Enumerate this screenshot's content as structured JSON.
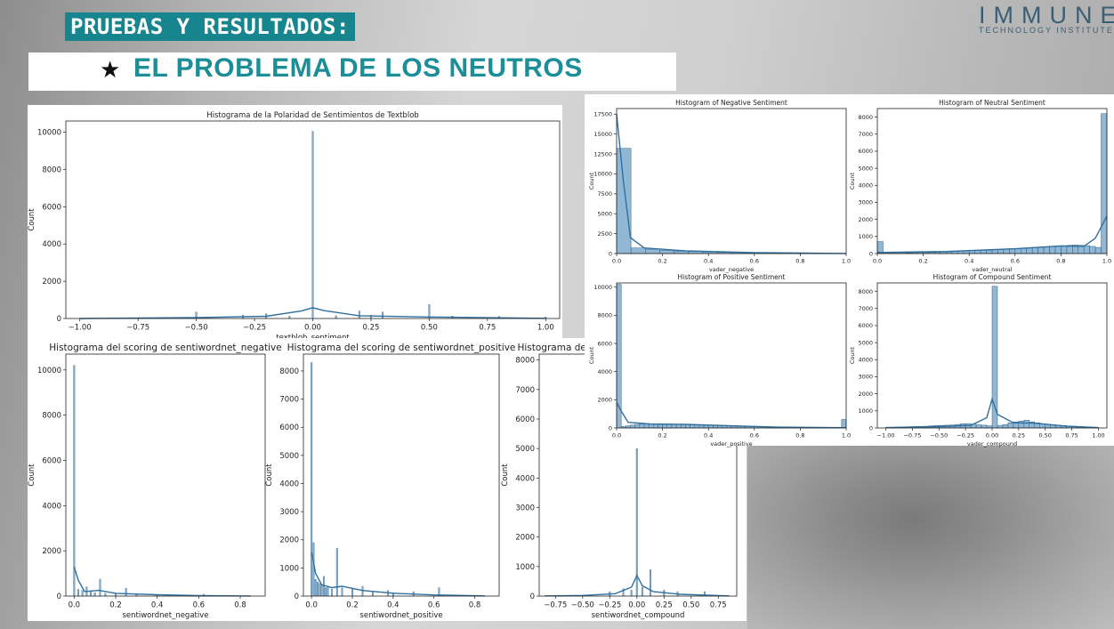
{
  "header": {
    "tag": "PRUEBAS Y RESULTADOS:",
    "star": "★",
    "subtitle": "EL PROBLEMA DE LOS NEUTROS"
  },
  "logo": {
    "name": "IMMUNE",
    "tagline": "TECHNOLOGY INSTITUTE"
  },
  "colors": {
    "accent": "#17858e",
    "bar": "#6c9fc7",
    "line": "#2f6f9f"
  },
  "chart_data": [
    {
      "id": "tb",
      "type": "bar",
      "title": "Histograma de la Polaridad de Sentimientos de Textblob",
      "xlabel": "textblob_sentiment",
      "ylabel": "Count",
      "xlim": [
        -1.06,
        1.06
      ],
      "ylim": [
        0,
        10600
      ],
      "xticks": [
        -1.0,
        -0.75,
        -0.5,
        -0.25,
        0.0,
        0.25,
        0.5,
        0.75,
        1.0
      ],
      "xticklabels": [
        "−1.00",
        "−0.75",
        "−0.50",
        "−0.25",
        "0.00",
        "0.25",
        "0.50",
        "0.75",
        "1.00"
      ],
      "yticks": [
        0,
        2000,
        4000,
        6000,
        8000,
        10000
      ],
      "yticklabels": [
        "0",
        "2000",
        "4000",
        "6000",
        "8000",
        "10000"
      ],
      "bars": [
        [
          -0.5,
          350
        ],
        [
          -0.3,
          180
        ],
        [
          -0.2,
          260
        ],
        [
          -0.1,
          120
        ],
        [
          0.0,
          10050
        ],
        [
          0.1,
          150
        ],
        [
          0.2,
          400
        ],
        [
          0.25,
          180
        ],
        [
          0.3,
          350
        ],
        [
          0.5,
          750
        ],
        [
          0.6,
          130
        ],
        [
          0.8,
          120
        ],
        [
          1.0,
          80
        ]
      ],
      "kde": [
        [
          -1.0,
          0
        ],
        [
          -0.5,
          50
        ],
        [
          -0.2,
          120
        ],
        [
          -0.05,
          400
        ],
        [
          0.0,
          580
        ],
        [
          0.05,
          420
        ],
        [
          0.2,
          150
        ],
        [
          0.5,
          80
        ],
        [
          1.0,
          10
        ]
      ]
    },
    {
      "id": "neg",
      "type": "bar",
      "title": "Histogram of Negative Sentiment",
      "xlabel": "vader_negative",
      "ylabel": "Count",
      "xlim": [
        0,
        1
      ],
      "ylim": [
        0,
        18200
      ],
      "xticks": [
        0,
        0.2,
        0.4,
        0.6,
        0.8,
        1.0
      ],
      "xticklabels": [
        "0.0",
        "0.2",
        "0.4",
        "0.6",
        "0.8",
        "1.0"
      ],
      "yticks": [
        0,
        2500,
        5000,
        7500,
        10000,
        12500,
        15000,
        17500
      ],
      "yticklabels": [
        "0",
        "2500",
        "5000",
        "7500",
        "10000",
        "12500",
        "15000",
        "17500"
      ],
      "bins": {
        "start": 0,
        "width": 0.0625,
        "values": [
          13200,
          700,
          550,
          400,
          300,
          250,
          200,
          150,
          120,
          100,
          80,
          60,
          50,
          40,
          30,
          20
        ]
      },
      "kde": [
        [
          0,
          17500
        ],
        [
          0.03,
          9000
        ],
        [
          0.06,
          2000
        ],
        [
          0.12,
          700
        ],
        [
          0.3,
          350
        ],
        [
          0.6,
          120
        ],
        [
          1.0,
          10
        ]
      ]
    },
    {
      "id": "neu",
      "type": "bar",
      "title": "Histogram of Neutral Sentiment",
      "xlabel": "vader_neutral",
      "ylabel": "Count",
      "xlim": [
        0,
        1
      ],
      "ylim": [
        0,
        8500
      ],
      "xticks": [
        0,
        0.2,
        0.4,
        0.6,
        0.8,
        1.0
      ],
      "xticklabels": [
        "0.0",
        "0.2",
        "0.4",
        "0.6",
        "0.8",
        "1.0"
      ],
      "yticks": [
        0,
        1000,
        2000,
        3000,
        4000,
        5000,
        6000,
        7000,
        8000
      ],
      "yticklabels": [
        "0",
        "1000",
        "2000",
        "3000",
        "4000",
        "5000",
        "6000",
        "7000",
        "8000"
      ],
      "bins": {
        "start": 0,
        "width": 0.025,
        "values": [
          700,
          60,
          30,
          30,
          30,
          40,
          50,
          60,
          60,
          70,
          80,
          90,
          100,
          120,
          140,
          160,
          170,
          180,
          200,
          210,
          220,
          240,
          260,
          280,
          300,
          320,
          340,
          360,
          380,
          400,
          420,
          440,
          460,
          480,
          500,
          480,
          460,
          420,
          360,
          8200
        ]
      },
      "kde": [
        [
          0,
          60
        ],
        [
          0.3,
          120
        ],
        [
          0.6,
          280
        ],
        [
          0.8,
          450
        ],
        [
          0.9,
          420
        ],
        [
          0.95,
          900
        ],
        [
          1.0,
          2200
        ]
      ]
    },
    {
      "id": "pos",
      "type": "bar",
      "title": "Histogram of Positive Sentiment",
      "xlabel": "vader_positive",
      "ylabel": "Count",
      "xlim": [
        0,
        1
      ],
      "ylim": [
        0,
        10300
      ],
      "xticks": [
        0,
        0.2,
        0.4,
        0.6,
        0.8,
        1.0
      ],
      "xticklabels": [
        "0.0",
        "0.2",
        "0.4",
        "0.6",
        "0.8",
        "1.0"
      ],
      "yticks": [
        0,
        2000,
        4000,
        6000,
        8000,
        10000
      ],
      "yticklabels": [
        "0",
        "2000",
        "4000",
        "6000",
        "8000",
        "10000"
      ],
      "bins": {
        "start": 0,
        "width": 0.02,
        "values": [
          10200,
          100,
          150,
          200,
          250,
          280,
          300,
          300,
          300,
          300,
          290,
          280,
          270,
          260,
          250,
          240,
          230,
          220,
          210,
          200,
          190,
          180,
          170,
          160,
          150,
          140,
          130,
          120,
          110,
          100,
          90,
          80,
          70,
          60,
          55,
          50,
          45,
          40,
          35,
          30,
          28,
          26,
          24,
          22,
          20,
          18,
          16,
          14,
          12,
          600
        ]
      },
      "kde": [
        [
          0,
          1800
        ],
        [
          0.02,
          1200
        ],
        [
          0.05,
          400
        ],
        [
          0.15,
          280
        ],
        [
          0.3,
          250
        ],
        [
          0.5,
          150
        ],
        [
          0.7,
          60
        ],
        [
          1.0,
          20
        ]
      ]
    },
    {
      "id": "comp",
      "type": "bar",
      "title": "Histogram of Compound Sentiment",
      "xlabel": "vader_compound",
      "ylabel": "Count",
      "xlim": [
        -1.08,
        1.08
      ],
      "ylim": [
        0,
        8500
      ],
      "xticks": [
        -1.0,
        -0.75,
        -0.5,
        -0.25,
        0.0,
        0.25,
        0.5,
        0.75,
        1.0
      ],
      "xticklabels": [
        "−1.00",
        "−0.75",
        "−0.50",
        "−0.25",
        "0.00",
        "0.25",
        "0.50",
        "0.75",
        "1.00"
      ],
      "yticks": [
        0,
        1000,
        2000,
        3000,
        4000,
        5000,
        6000,
        7000,
        8000
      ],
      "yticklabels": [
        "0",
        "1000",
        "2000",
        "3000",
        "4000",
        "5000",
        "6000",
        "7000",
        "8000"
      ],
      "bins": {
        "start": -1.0,
        "width": 0.05,
        "values": [
          30,
          40,
          50,
          60,
          70,
          80,
          90,
          100,
          120,
          140,
          150,
          160,
          170,
          200,
          250,
          250,
          220,
          180,
          160,
          120,
          8300,
          150,
          200,
          300,
          350,
          400,
          450,
          350,
          300,
          250,
          200,
          180,
          160,
          140,
          120,
          100,
          80,
          60,
          40,
          30
        ]
      },
      "kde": [
        [
          -1.0,
          20
        ],
        [
          -0.5,
          80
        ],
        [
          -0.2,
          150
        ],
        [
          -0.05,
          600
        ],
        [
          0.0,
          1700
        ],
        [
          0.05,
          800
        ],
        [
          0.2,
          300
        ],
        [
          0.4,
          280
        ],
        [
          0.7,
          100
        ],
        [
          1.0,
          20
        ]
      ]
    },
    {
      "id": "swn_neg",
      "type": "bar",
      "title": "Histograma del scoring de sentiwordnet_negative",
      "xlabel": "sentiwordnet_negative",
      "ylabel": "Count",
      "xlim": [
        -0.04,
        0.92
      ],
      "ylim": [
        0,
        10700
      ],
      "xticks": [
        0,
        0.2,
        0.4,
        0.6,
        0.8
      ],
      "xticklabels": [
        "0.0",
        "0.2",
        "0.4",
        "0.6",
        "0.8"
      ],
      "yticks": [
        0,
        2000,
        4000,
        6000,
        8000,
        10000
      ],
      "yticklabels": [
        "0",
        "2000",
        "4000",
        "6000",
        "8000",
        "10000"
      ],
      "bars": [
        [
          0.0,
          10200
        ],
        [
          0.02,
          300
        ],
        [
          0.04,
          250
        ],
        [
          0.06,
          400
        ],
        [
          0.08,
          200
        ],
        [
          0.1,
          150
        ],
        [
          0.125,
          750
        ],
        [
          0.15,
          120
        ],
        [
          0.2,
          100
        ],
        [
          0.25,
          350
        ],
        [
          0.3,
          80
        ],
        [
          0.4,
          60
        ],
        [
          0.5,
          40
        ],
        [
          0.625,
          80
        ]
      ],
      "kde": [
        [
          0,
          1300
        ],
        [
          0.02,
          700
        ],
        [
          0.05,
          200
        ],
        [
          0.12,
          250
        ],
        [
          0.2,
          120
        ],
        [
          0.4,
          60
        ],
        [
          0.6,
          20
        ],
        [
          0.85,
          5
        ]
      ]
    },
    {
      "id": "swn_pos",
      "type": "bar",
      "title": "Histograma del scoring de sentiwordnet_positive",
      "xlabel": "sentiwordnet_positive",
      "ylabel": "Count",
      "xlim": [
        -0.04,
        0.92
      ],
      "ylim": [
        0,
        8600
      ],
      "xticks": [
        0,
        0.2,
        0.4,
        0.6,
        0.8
      ],
      "xticklabels": [
        "0.0",
        "0.2",
        "0.4",
        "0.6",
        "0.8"
      ],
      "yticks": [
        0,
        1000,
        2000,
        3000,
        4000,
        5000,
        6000,
        7000,
        8000
      ],
      "yticklabels": [
        "0",
        "1000",
        "2000",
        "3000",
        "4000",
        "5000",
        "6000",
        "7000",
        "8000"
      ],
      "bars": [
        [
          0.0,
          8300
        ],
        [
          0.01,
          1900
        ],
        [
          0.02,
          600
        ],
        [
          0.03,
          500
        ],
        [
          0.04,
          450
        ],
        [
          0.05,
          400
        ],
        [
          0.06,
          700
        ],
        [
          0.07,
          300
        ],
        [
          0.08,
          350
        ],
        [
          0.1,
          250
        ],
        [
          0.125,
          1700
        ],
        [
          0.15,
          300
        ],
        [
          0.2,
          250
        ],
        [
          0.25,
          350
        ],
        [
          0.3,
          150
        ],
        [
          0.375,
          200
        ],
        [
          0.4,
          120
        ],
        [
          0.5,
          150
        ],
        [
          0.625,
          300
        ]
      ],
      "kde": [
        [
          0,
          1550
        ],
        [
          0.02,
          800
        ],
        [
          0.05,
          400
        ],
        [
          0.1,
          300
        ],
        [
          0.15,
          350
        ],
        [
          0.25,
          200
        ],
        [
          0.4,
          100
        ],
        [
          0.6,
          40
        ],
        [
          0.85,
          5
        ]
      ]
    },
    {
      "id": "swn_comp",
      "type": "bar",
      "title": "Histograma del scoring de sentiwordnet_compound",
      "xlabel": "sentiwordnet_compound",
      "ylabel": "Count",
      "xlim": [
        -0.9,
        0.92
      ],
      "ylim": [
        0,
        8200
      ],
      "xticks": [
        -0.75,
        -0.5,
        -0.25,
        0.0,
        0.25,
        0.5,
        0.75
      ],
      "xticklabels": [
        "−0.75",
        "−0.50",
        "−0.25",
        "0.00",
        "0.25",
        "0.50",
        "0.75"
      ],
      "yticks": [
        0,
        1000,
        2000,
        3000,
        4000,
        5000,
        6000,
        7000,
        8000
      ],
      "yticklabels": [
        "0",
        "1000",
        "2000",
        "3000",
        "4000",
        "5000",
        "6000",
        "7000",
        "8000"
      ],
      "bars": [
        [
          -0.25,
          150
        ],
        [
          -0.125,
          250
        ],
        [
          -0.05,
          200
        ],
        [
          0.0,
          5000
        ],
        [
          0.05,
          300
        ],
        [
          0.125,
          900
        ],
        [
          0.25,
          200
        ],
        [
          0.375,
          150
        ],
        [
          0.625,
          150
        ]
      ],
      "kde": [
        [
          -0.85,
          5
        ],
        [
          -0.5,
          20
        ],
        [
          -0.2,
          80
        ],
        [
          -0.05,
          300
        ],
        [
          0.0,
          700
        ],
        [
          0.05,
          350
        ],
        [
          0.15,
          150
        ],
        [
          0.4,
          60
        ],
        [
          0.85,
          5
        ]
      ]
    }
  ]
}
